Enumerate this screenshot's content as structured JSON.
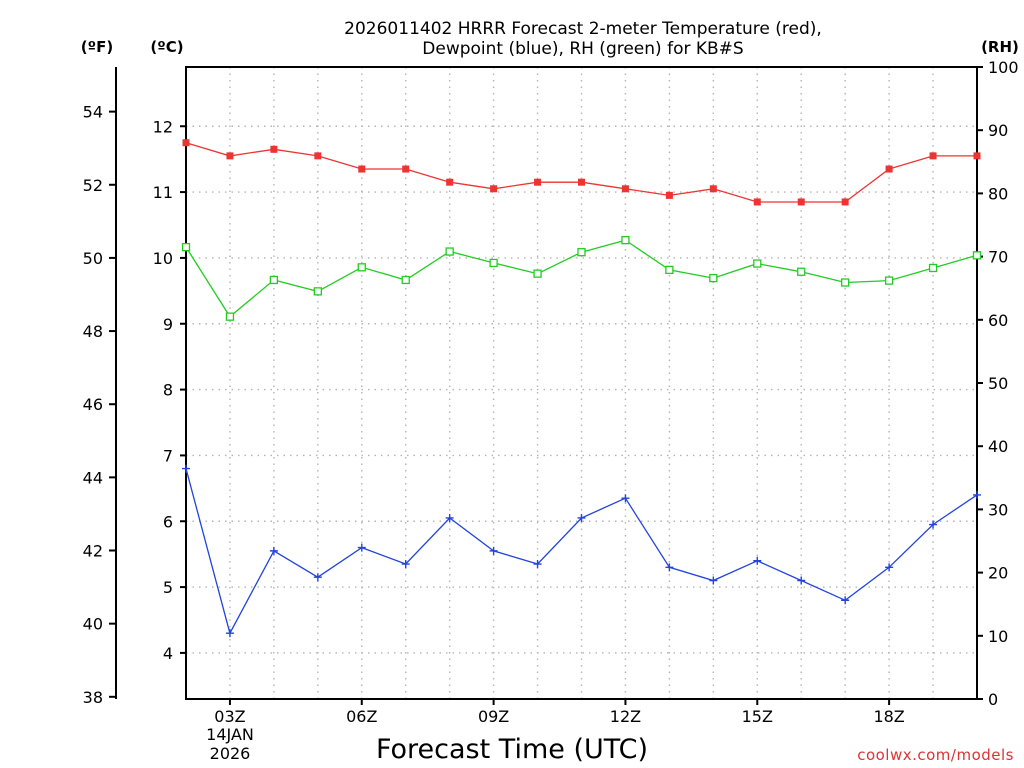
{
  "chart_data": {
    "type": "line",
    "title": "2026011402 HRRR Forecast 2-meter Temperature (red),",
    "subtitle": "Dewpoint (blue), RH (green) for KB#S",
    "xlabel": "Forecast Time (UTC)",
    "x": [
      2,
      3,
      4,
      5,
      6,
      7,
      8,
      9,
      10,
      11,
      12,
      13,
      14,
      15,
      16,
      17,
      18,
      19,
      20
    ],
    "xlim": [
      2,
      20
    ],
    "x_ticks": [
      3,
      6,
      9,
      12,
      15,
      18
    ],
    "x_tick_labels": [
      "03Z",
      "06Z",
      "09Z",
      "12Z",
      "15Z",
      "18Z"
    ],
    "date_label_line1": "14JAN",
    "date_label_line2": "2026",
    "left_axis_c": {
      "label": "(ºC)",
      "ylim": [
        3.3,
        12.9
      ],
      "ticks": [
        4,
        5,
        6,
        7,
        8,
        9,
        10,
        11,
        12
      ]
    },
    "left_axis_f": {
      "label": "(ºF)",
      "ylim": [
        37.94,
        55.22
      ],
      "ticks": [
        38,
        40,
        42,
        44,
        46,
        48,
        50,
        52,
        54
      ]
    },
    "right_axis_rh": {
      "label": "(RH)",
      "ylim": [
        0,
        100
      ],
      "ticks": [
        0,
        10,
        20,
        30,
        40,
        50,
        60,
        70,
        80,
        90,
        100
      ]
    },
    "series": [
      {
        "name": "2-meter Temperature",
        "axis": "celsius",
        "color": "#ee3333",
        "marker": "filled-square",
        "values": [
          11.75,
          11.55,
          11.65,
          11.55,
          11.35,
          11.35,
          11.15,
          11.05,
          11.15,
          11.15,
          11.05,
          10.95,
          11.05,
          10.85,
          10.85,
          10.85,
          11.35,
          11.55,
          11.55
        ]
      },
      {
        "name": "Dewpoint",
        "axis": "celsius",
        "color": "#2244dd",
        "marker": "plus",
        "values": [
          6.8,
          4.3,
          5.55,
          5.15,
          5.6,
          5.35,
          6.05,
          5.55,
          5.35,
          6.05,
          6.35,
          5.3,
          5.1,
          5.4,
          5.1,
          4.8,
          5.3,
          5.95,
          6.4
        ]
      },
      {
        "name": "Relative Humidity",
        "axis": "rh",
        "color": "#22cc22",
        "marker": "open-square",
        "values": [
          71.5,
          60.5,
          66.3,
          64.5,
          68.3,
          66.3,
          70.8,
          69.0,
          67.3,
          70.7,
          72.6,
          67.9,
          66.6,
          68.9,
          67.6,
          65.9,
          66.2,
          68.2,
          70.2
        ]
      }
    ],
    "grid": true
  },
  "credit": "coolwx.com/models"
}
